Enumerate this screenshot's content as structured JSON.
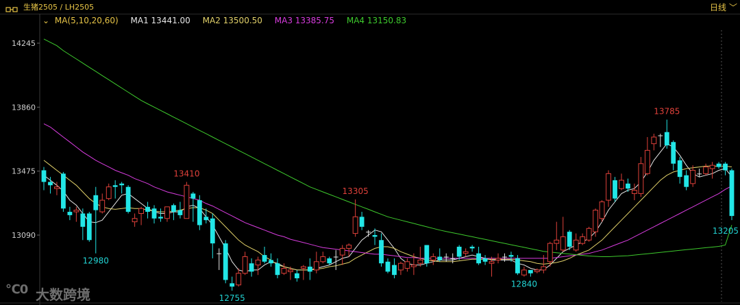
{
  "header": {
    "symbol": "生猪2505  /  LH2505",
    "period": "日线",
    "period_chevron": "﹀"
  },
  "legend": {
    "chevron": "⌄",
    "main": "MA(5,10,20,60)",
    "ma1": "MA1 13441.00",
    "ma2": "MA2 13500.50",
    "ma3": "MA3 13385.75",
    "ma4": "MA4 13150.83"
  },
  "watermark": {
    "logo": "℃0",
    "text": "大数跨境"
  },
  "colors": {
    "up": "#e0413a",
    "down": "#22e6e6",
    "ma1": "#e6e6e6",
    "ma2": "#e3d26a",
    "ma3": "#d93de0",
    "ma4": "#3ecb2d",
    "high_label": "#e0413a",
    "low_label": "#22d3d3",
    "axis_text": "#cfcfcf"
  },
  "chart_data": {
    "type": "candlestick",
    "title": "",
    "ylim": [
      12730,
      14290
    ],
    "yticks": [
      14245,
      13860,
      13475,
      13090
    ],
    "grid": false,
    "candles": [
      [
        13480,
        13410,
        13500,
        13360
      ],
      [
        13410,
        13390,
        13440,
        13340
      ],
      [
        13370,
        13380,
        13410,
        13330
      ],
      [
        13460,
        13250,
        13470,
        13230
      ],
      [
        13230,
        13210,
        13260,
        13180
      ],
      [
        13230,
        13240,
        13260,
        13170
      ],
      [
        13220,
        13140,
        13250,
        13060
      ],
      [
        13220,
        13060,
        13230,
        13050
      ],
      [
        13330,
        13240,
        13380,
        12980
      ],
      [
        13230,
        13300,
        13340,
        13220
      ],
      [
        13310,
        13380,
        13400,
        13300
      ],
      [
        13390,
        13380,
        13420,
        13310
      ],
      [
        13400,
        13390,
        13410,
        13340
      ],
      [
        13380,
        13230,
        13390,
        13220
      ],
      [
        13170,
        13190,
        13220,
        13140
      ],
      [
        13220,
        13250,
        13260,
        13150
      ],
      [
        13260,
        13230,
        13290,
        13190
      ],
      [
        13250,
        13190,
        13270,
        13160
      ],
      [
        13200,
        13190,
        13250,
        13170
      ],
      [
        13190,
        13260,
        13260,
        13170
      ],
      [
        13270,
        13230,
        13280,
        13180
      ],
      [
        13240,
        13210,
        13290,
        13190
      ],
      [
        13190,
        13390,
        13410,
        13190
      ],
      [
        13340,
        13310,
        13350,
        13170
      ],
      [
        13300,
        13150,
        13330,
        13120
      ],
      [
        13200,
        13180,
        13250,
        13160
      ],
      [
        13190,
        13040,
        13220,
        12950
      ],
      [
        12980,
        12980,
        13010,
        12880
      ],
      [
        13040,
        12820,
        13060,
        12800
      ],
      [
        12800,
        12780,
        12840,
        12755
      ],
      [
        12790,
        12860,
        12890,
        12780
      ],
      [
        12860,
        12960,
        12990,
        12850
      ],
      [
        12920,
        12870,
        12950,
        12840
      ],
      [
        12910,
        12940,
        12960,
        12850
      ],
      [
        12970,
        12930,
        13020,
        12920
      ],
      [
        12940,
        12920,
        12980,
        12900
      ],
      [
        12920,
        12850,
        12950,
        12830
      ],
      [
        12860,
        12890,
        12920,
        12850
      ],
      [
        12870,
        12880,
        12900,
        12820
      ],
      [
        12860,
        12830,
        12880,
        12810
      ],
      [
        12890,
        12900,
        12910,
        12820
      ],
      [
        12900,
        12870,
        12950,
        12820
      ],
      [
        12880,
        12930,
        12990,
        12860
      ],
      [
        12930,
        12960,
        12990,
        12920
      ],
      [
        12950,
        12920,
        12960,
        12910
      ],
      [
        12960,
        12960,
        13000,
        12880
      ],
      [
        12970,
        13010,
        13030,
        12910
      ],
      [
        13010,
        13030,
        13040,
        12960
      ],
      [
        13100,
        13200,
        13305,
        13080
      ],
      [
        13200,
        13140,
        13230,
        13120
      ],
      [
        13110,
        13110,
        13120,
        13080
      ],
      [
        13090,
        13080,
        13130,
        13030
      ],
      [
        13060,
        12920,
        13100,
        12900
      ],
      [
        12930,
        12870,
        12950,
        12860
      ],
      [
        12910,
        12850,
        12950,
        12830
      ],
      [
        12880,
        12920,
        12930,
        12850
      ],
      [
        12890,
        12930,
        12950,
        12870
      ],
      [
        12900,
        12910,
        12980,
        12850
      ],
      [
        12920,
        12940,
        13020,
        12900
      ],
      [
        13030,
        12920,
        13030,
        12900
      ],
      [
        12940,
        12960,
        12980,
        12910
      ],
      [
        12960,
        12940,
        13010,
        12930
      ],
      [
        12960,
        12960,
        12980,
        12930
      ],
      [
        12950,
        12950,
        12980,
        12920
      ],
      [
        13020,
        12960,
        13030,
        12940
      ],
      [
        12980,
        12990,
        13010,
        12960
      ],
      [
        13020,
        13010,
        13030,
        12990
      ],
      [
        12980,
        12920,
        13020,
        12910
      ],
      [
        12950,
        12930,
        12970,
        12910
      ],
      [
        12920,
        12930,
        12960,
        12840
      ],
      [
        12940,
        12950,
        12980,
        12920
      ],
      [
        12960,
        12960,
        12980,
        12930
      ],
      [
        12970,
        12960,
        12990,
        12930
      ],
      [
        12950,
        12860,
        12970,
        12850
      ],
      [
        12850,
        12880,
        12900,
        12840
      ],
      [
        12880,
        12860,
        12880,
        12840
      ],
      [
        12870,
        12880,
        12890,
        12860
      ],
      [
        12880,
        12900,
        12970,
        12860
      ],
      [
        12930,
        13040,
        13050,
        12900
      ],
      [
        13040,
        13060,
        13170,
        13000
      ],
      [
        13000,
        13080,
        13200,
        12990
      ],
      [
        13110,
        13020,
        13120,
        13000
      ],
      [
        13000,
        13060,
        13100,
        12990
      ],
      [
        13040,
        13080,
        13100,
        13030
      ],
      [
        13060,
        13130,
        13140,
        13050
      ],
      [
        13110,
        13240,
        13250,
        13080
      ],
      [
        13190,
        13290,
        13300,
        13170
      ],
      [
        13300,
        13460,
        13480,
        13260
      ],
      [
        13420,
        13310,
        13440,
        13290
      ],
      [
        13370,
        13420,
        13460,
        13360
      ],
      [
        13400,
        13370,
        13430,
        13350
      ],
      [
        13340,
        13360,
        13400,
        13300
      ],
      [
        13340,
        13520,
        13560,
        13320
      ],
      [
        13460,
        13600,
        13680,
        13450
      ],
      [
        13640,
        13680,
        13700,
        13600
      ],
      [
        13690,
        13690,
        13700,
        13620
      ],
      [
        13710,
        13630,
        13785,
        13610
      ],
      [
        13650,
        13520,
        13660,
        13480
      ],
      [
        13540,
        13440,
        13560,
        13400
      ],
      [
        13450,
        13380,
        13480,
        13360
      ],
      [
        13400,
        13480,
        13510,
        13380
      ],
      [
        13460,
        13460,
        13490,
        13440
      ],
      [
        13460,
        13500,
        13520,
        13450
      ],
      [
        13490,
        13510,
        13530,
        13430
      ],
      [
        13520,
        13500,
        13530,
        13490
      ],
      [
        13520,
        13480,
        13530,
        13450
      ],
      [
        13480,
        13205,
        13490,
        13180
      ]
    ],
    "ma_series": [
      {
        "name": "MA1",
        "values": [
          13450,
          13420,
          13390,
          13355,
          13300,
          13270,
          13220,
          13170,
          13165,
          13180,
          13230,
          13280,
          13330,
          13340,
          13310,
          13280,
          13250,
          13230,
          13220,
          13220,
          13230,
          13230,
          13260,
          13270,
          13250,
          13200,
          13150,
          13080,
          13010,
          12930,
          12880,
          12870,
          12880,
          12880,
          12910,
          12930,
          12920,
          12900,
          12890,
          12880,
          12880,
          12880,
          12890,
          12900,
          12910,
          12930,
          12950,
          12960,
          13010,
          13060,
          13090,
          13120,
          13110,
          13060,
          13010,
          12950,
          12920,
          12910,
          12910,
          12920,
          12930,
          12940,
          12940,
          12940,
          12950,
          12960,
          12970,
          12960,
          12950,
          12940,
          12940,
          12940,
          12940,
          12920,
          12910,
          12890,
          12880,
          12880,
          12910,
          12950,
          12990,
          13010,
          13030,
          13050,
          13070,
          13110,
          13170,
          13240,
          13290,
          13340,
          13360,
          13370,
          13410,
          13470,
          13540,
          13590,
          13640,
          13620,
          13570,
          13510,
          13460,
          13440,
          13450,
          13460,
          13480,
          13490,
          13441
        ]
      },
      {
        "name": "MA2",
        "values": [
          13540,
          13510,
          13480,
          13450,
          13420,
          13390,
          13350,
          13310,
          13280,
          13260,
          13250,
          13245,
          13250,
          13255,
          13250,
          13250,
          13240,
          13235,
          13230,
          13230,
          13235,
          13240,
          13250,
          13255,
          13255,
          13240,
          13220,
          13180,
          13140,
          13100,
          13060,
          13030,
          13010,
          12990,
          12960,
          12940,
          12910,
          12900,
          12890,
          12880,
          12880,
          12880,
          12885,
          12890,
          12900,
          12905,
          12915,
          12925,
          12950,
          12970,
          12990,
          13010,
          13020,
          13020,
          13010,
          12990,
          12975,
          12960,
          12950,
          12940,
          12935,
          12930,
          12930,
          12930,
          12935,
          12940,
          12945,
          12945,
          12945,
          12945,
          12945,
          12945,
          12945,
          12940,
          12935,
          12930,
          12920,
          12915,
          12920,
          12925,
          12935,
          12950,
          12970,
          12985,
          13000,
          13030,
          13060,
          13100,
          13140,
          13180,
          13220,
          13260,
          13300,
          13340,
          13380,
          13420,
          13450,
          13470,
          13480,
          13490,
          13495,
          13500,
          13505,
          13505,
          13505,
          13505,
          13500.5
        ]
      },
      {
        "name": "MA3",
        "values": [
          13760,
          13740,
          13710,
          13680,
          13650,
          13620,
          13590,
          13565,
          13540,
          13520,
          13500,
          13480,
          13465,
          13450,
          13430,
          13415,
          13400,
          13380,
          13365,
          13350,
          13340,
          13330,
          13320,
          13310,
          13300,
          13280,
          13265,
          13245,
          13225,
          13205,
          13185,
          13165,
          13150,
          13135,
          13120,
          13105,
          13090,
          13080,
          13065,
          13055,
          13045,
          13035,
          13025,
          13015,
          13010,
          13005,
          13000,
          12995,
          12990,
          12985,
          12980,
          12975,
          12975,
          12970,
          12965,
          12960,
          12955,
          12955,
          12950,
          12950,
          12950,
          12950,
          12950,
          12950,
          12950,
          12950,
          12950,
          12950,
          12950,
          12950,
          12950,
          12950,
          12950,
          12950,
          12950,
          12950,
          12950,
          12950,
          12950,
          12955,
          12960,
          12965,
          12970,
          12975,
          12980,
          12990,
          13000,
          13015,
          13030,
          13045,
          13060,
          13080,
          13100,
          13120,
          13140,
          13160,
          13180,
          13200,
          13220,
          13240,
          13260,
          13280,
          13300,
          13320,
          13340,
          13365,
          13385.75
        ]
      },
      {
        "name": "MA4",
        "values": [
          14270,
          14250,
          14230,
          14200,
          14175,
          14150,
          14125,
          14100,
          14075,
          14050,
          14025,
          14000,
          13975,
          13950,
          13925,
          13900,
          13880,
          13860,
          13840,
          13820,
          13800,
          13780,
          13760,
          13740,
          13720,
          13700,
          13680,
          13660,
          13640,
          13620,
          13600,
          13580,
          13560,
          13540,
          13520,
          13500,
          13480,
          13460,
          13440,
          13420,
          13400,
          13380,
          13365,
          13350,
          13335,
          13320,
          13305,
          13290,
          13275,
          13260,
          13245,
          13230,
          13215,
          13200,
          13190,
          13180,
          13170,
          13160,
          13150,
          13140,
          13130,
          13120,
          13112,
          13104,
          13096,
          13088,
          13080,
          13072,
          13064,
          13056,
          13048,
          13040,
          13032,
          13024,
          13016,
          13008,
          13000,
          12992,
          12988,
          12984,
          12980,
          12976,
          12972,
          12968,
          12964,
          12962,
          12960,
          12960,
          12962,
          12964,
          12966,
          12970,
          12974,
          12978,
          12982,
          12986,
          12990,
          12994,
          12998,
          13002,
          13006,
          13010,
          13014,
          13018,
          13022,
          13030,
          13150.83
        ]
      }
    ],
    "annotations": [
      {
        "text": "13410",
        "index": 22,
        "value": 13410,
        "kind": "high"
      },
      {
        "text": "12980",
        "index": 8,
        "value": 12980,
        "kind": "low"
      },
      {
        "text": "12755",
        "index": 29,
        "value": 12755,
        "kind": "low"
      },
      {
        "text": "13305",
        "index": 48,
        "value": 13305,
        "kind": "high"
      },
      {
        "text": "12840",
        "index": 74,
        "value": 12840,
        "kind": "low"
      },
      {
        "text": "13785",
        "index": 96,
        "value": 13785,
        "kind": "high"
      },
      {
        "text": "13205",
        "index": 106,
        "value": 13205,
        "kind": "last"
      }
    ]
  }
}
